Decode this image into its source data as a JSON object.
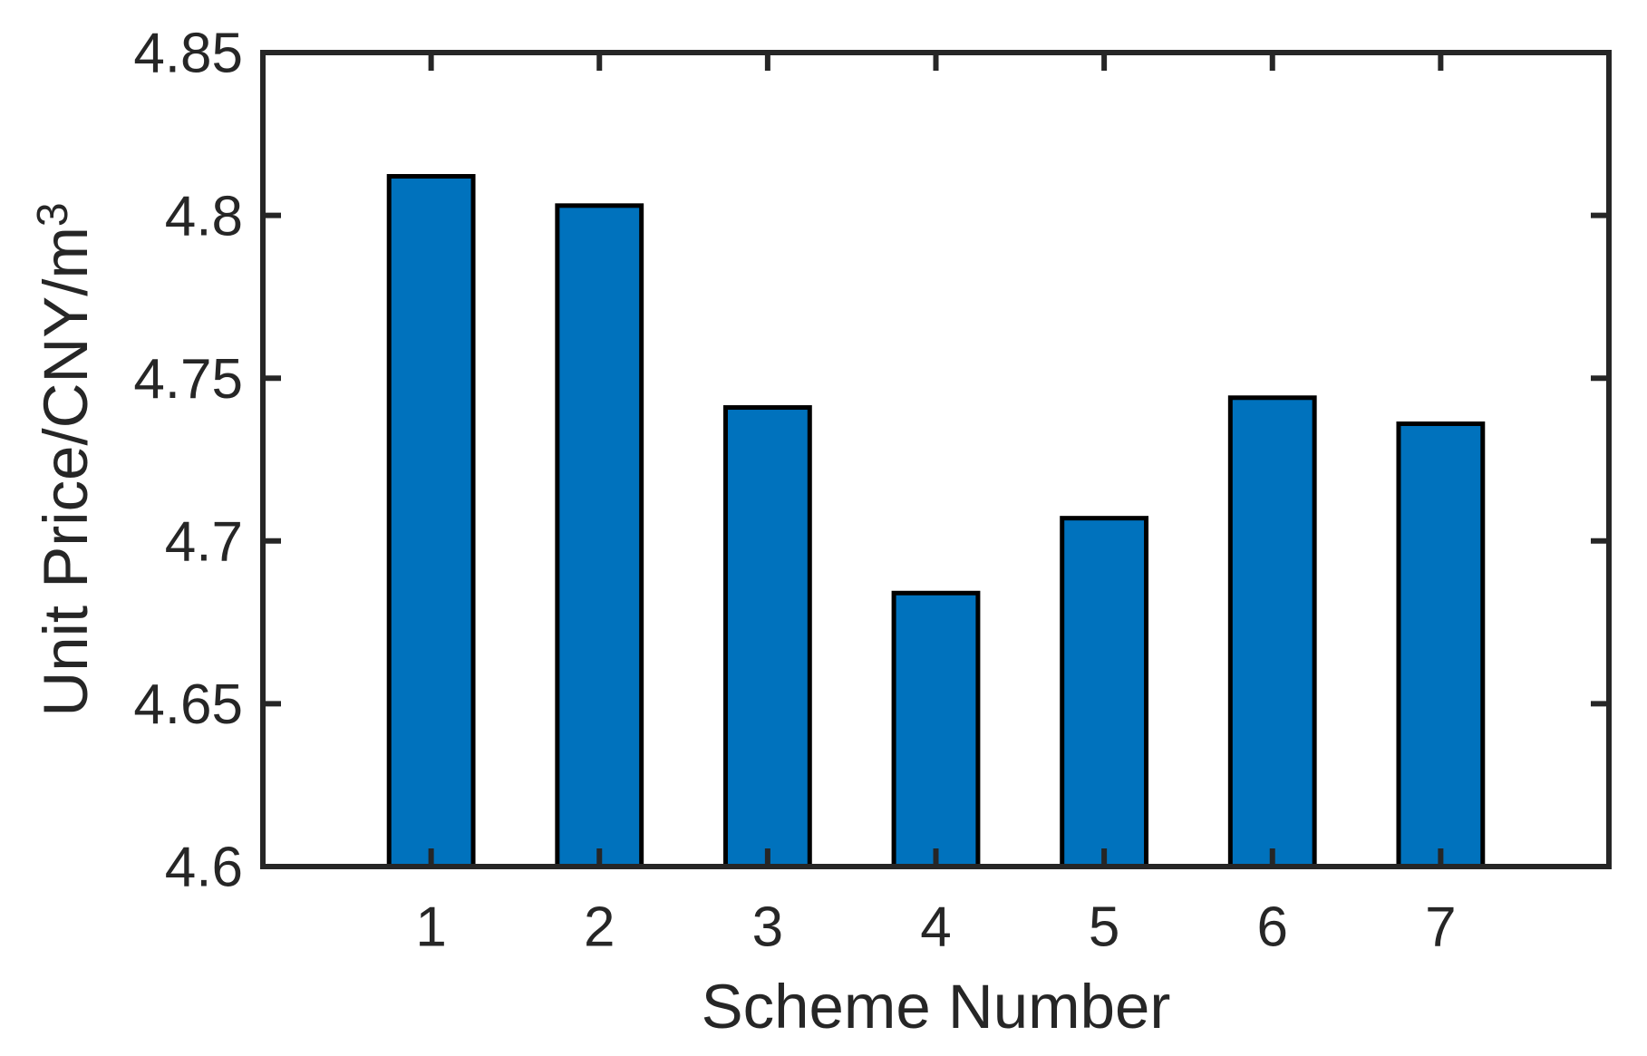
{
  "chart_data": {
    "type": "bar",
    "title": "",
    "xlabel": "Scheme Number",
    "ylabel": "Unit Price/CNY/m³",
    "ylabel_base": "Unit Price/CNY/m",
    "ylabel_superscript": "3",
    "categories": [
      "1",
      "2",
      "3",
      "4",
      "5",
      "6",
      "7"
    ],
    "values": [
      4.812,
      4.803,
      4.741,
      4.684,
      4.707,
      4.744,
      4.736
    ],
    "series_name": "Unit Price",
    "xlim": [
      0,
      8
    ],
    "ylim": [
      4.6,
      4.85
    ],
    "yticks": [
      4.6,
      4.65,
      4.7,
      4.75,
      4.8,
      4.85
    ],
    "ytick_labels": [
      "4.6",
      "4.65",
      "4.7",
      "4.75",
      "4.8",
      "4.85"
    ],
    "grid": false,
    "legend_position": "none",
    "box": true,
    "tick_direction": "in",
    "bar_width_fraction": 0.5,
    "colors": {
      "bar_fill": "#0072BD",
      "bar_edge": "#000000",
      "axis": "#262626",
      "text": "#262626",
      "background": "#FFFFFF"
    }
  }
}
